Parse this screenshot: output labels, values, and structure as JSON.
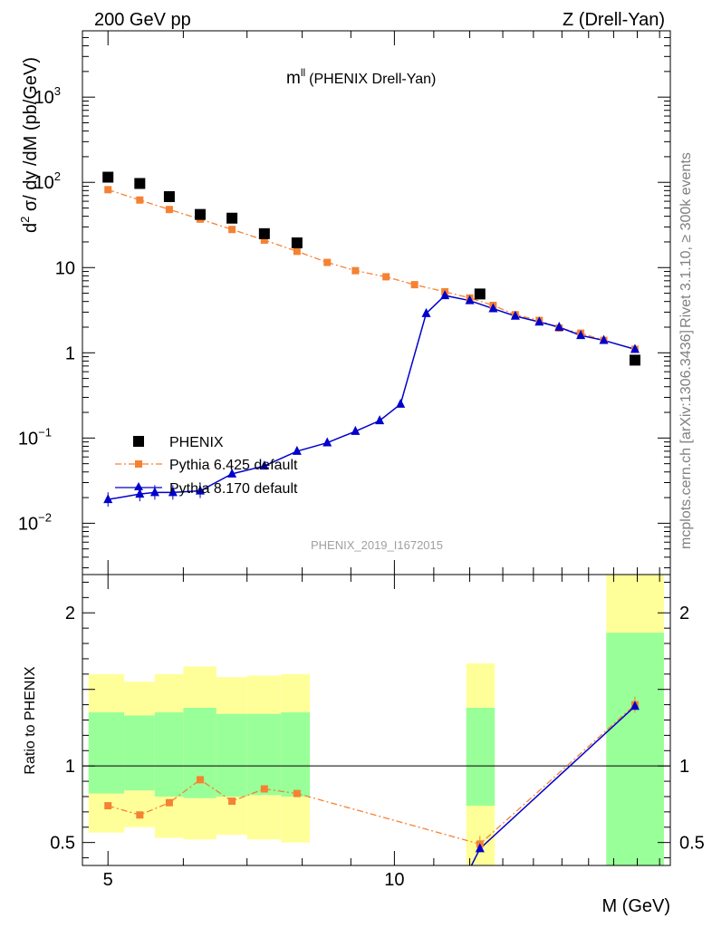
{
  "header": {
    "left": "200 GeV pp",
    "right": "Z (Drell-Yan)"
  },
  "side_labels": {
    "rivet": "Rivet 3.1.10, ≥ 300k events",
    "mcplots": "mcplots.cern.ch [arXiv:1306.3436]"
  },
  "chart_data": [
    {
      "type": "scatter",
      "panel": "main",
      "title": "m",
      "title_superscript": "ll",
      "subtitle": "(PHENIX Drell-Yan)",
      "ylabel": "d² σ/ dy /dM (pb/GeV)",
      "ylabel_parts": {
        "a": "d",
        "a_sup": "2",
        "b": " σ/ dy /dM (pb/GeV)"
      },
      "xlabel": "M (GeV)",
      "x_scale": "log",
      "y_scale": "log",
      "xlim": [
        4.7,
        19.5
      ],
      "ylim": [
        0.0025,
        6000
      ],
      "x_ticks": [
        {
          "value": 5,
          "label": "5"
        },
        {
          "value": 10,
          "label": "10"
        }
      ],
      "y_ticks": [
        {
          "value": 0.01,
          "base": "10",
          "exp": "−2"
        },
        {
          "value": 0.1,
          "base": "10",
          "exp": "−1"
        },
        {
          "value": 1,
          "base": "1",
          "exp": ""
        },
        {
          "value": 10,
          "base": "10",
          "exp": ""
        },
        {
          "value": 100,
          "base": "10",
          "exp": "2"
        },
        {
          "value": 1000,
          "base": "10",
          "exp": "3"
        }
      ],
      "watermark": "PHENIX_2019_I1672015",
      "legend_position": "bottom-left",
      "series": [
        {
          "name": "PHENIX",
          "style": "black-square",
          "color": "#000000",
          "x": [
            5.0,
            5.4,
            5.8,
            6.25,
            6.75,
            7.3,
            7.9,
            12.3,
            17.9
          ],
          "y": [
            115,
            97,
            68,
            42,
            38,
            25,
            19.5,
            4.9,
            0.82
          ]
        },
        {
          "name": "Pythia 6.425 default",
          "style": "orange-dashdot-square",
          "color": "#f58233",
          "x": [
            5.0,
            5.4,
            5.8,
            6.25,
            6.75,
            7.3,
            7.9,
            8.5,
            9.1,
            9.8,
            10.5,
            11.3,
            12.0,
            12.7,
            13.4,
            14.2,
            14.9,
            15.7,
            16.6,
            17.9
          ],
          "y": [
            82,
            62,
            48,
            37,
            28,
            21,
            15.5,
            11.5,
            9.2,
            7.8,
            6.3,
            5.2,
            4.4,
            3.6,
            2.8,
            2.4,
            1.95,
            1.7,
            1.4,
            1.1
          ]
        },
        {
          "name": "Pythia 8.170 default",
          "style": "blue-solid-triangle",
          "color": "#0000cc",
          "x": [
            5.0,
            5.4,
            5.6,
            5.85,
            6.25,
            6.75,
            7.3,
            7.9,
            8.5,
            9.1,
            9.65,
            10.15,
            10.8,
            11.3,
            12.0,
            12.7,
            13.4,
            14.2,
            14.9,
            15.7,
            16.6,
            17.9
          ],
          "y": [
            0.019,
            0.022,
            0.023,
            0.023,
            0.024,
            0.038,
            0.047,
            0.07,
            0.088,
            0.12,
            0.16,
            0.25,
            2.9,
            4.7,
            4.1,
            3.3,
            2.7,
            2.3,
            2.0,
            1.6,
            1.4,
            1.1
          ]
        }
      ]
    },
    {
      "type": "line",
      "panel": "ratio",
      "ylabel": "Ratio to PHENIX",
      "xlabel": "M (GeV)",
      "x_scale": "log",
      "xlim": [
        4.7,
        19.5
      ],
      "ylim": [
        0.35,
        2.25
      ],
      "y_ticks": [
        {
          "value": 0.5,
          "label": "0.5"
        },
        {
          "value": 1,
          "label": "1"
        },
        {
          "value": 2,
          "label": "2"
        }
      ],
      "x_ticks": [
        {
          "value": 5,
          "label": "5"
        },
        {
          "value": 10,
          "label": "10"
        }
      ],
      "reference_line": 1,
      "bands": [
        {
          "x0": 4.77,
          "x1": 5.2,
          "yellow": [
            0.565,
            1.6
          ],
          "green": [
            0.82,
            1.35
          ]
        },
        {
          "x0": 5.2,
          "x1": 5.6,
          "yellow": [
            0.6,
            1.55
          ],
          "green": [
            0.84,
            1.33
          ]
        },
        {
          "x0": 5.6,
          "x1": 6.0,
          "yellow": [
            0.53,
            1.6
          ],
          "green": [
            0.8,
            1.35
          ]
        },
        {
          "x0": 6.0,
          "x1": 6.5,
          "yellow": [
            0.52,
            1.65
          ],
          "green": [
            0.79,
            1.38
          ]
        },
        {
          "x0": 6.5,
          "x1": 7.0,
          "yellow": [
            0.55,
            1.58
          ],
          "green": [
            0.8,
            1.34
          ]
        },
        {
          "x0": 7.0,
          "x1": 7.6,
          "yellow": [
            0.52,
            1.59
          ],
          "green": [
            0.81,
            1.34
          ]
        },
        {
          "x0": 7.6,
          "x1": 8.15,
          "yellow": [
            0.5,
            1.6
          ],
          "green": [
            0.8,
            1.35
          ]
        },
        {
          "x0": 11.9,
          "x1": 12.75,
          "yellow": [
            0.35,
            1.67
          ],
          "green": [
            0.74,
            1.38
          ]
        },
        {
          "x0": 16.7,
          "x1": 19.2,
          "yellow": [
            0.35,
            2.25
          ],
          "green": [
            0.35,
            1.87
          ]
        }
      ],
      "series": [
        {
          "name": "Pythia 6.425 default",
          "color": "#f58233",
          "x": [
            5.0,
            5.4,
            5.8,
            6.25,
            6.75,
            7.3,
            7.9,
            12.3,
            17.9
          ],
          "y": [
            0.74,
            0.68,
            0.76,
            0.91,
            0.77,
            0.85,
            0.82,
            0.49,
            1.4
          ]
        },
        {
          "name": "Pythia 8.170 default",
          "color": "#0000cc",
          "x": [
            12.3,
            17.9
          ],
          "y": [
            0.46,
            1.39
          ]
        }
      ]
    }
  ]
}
